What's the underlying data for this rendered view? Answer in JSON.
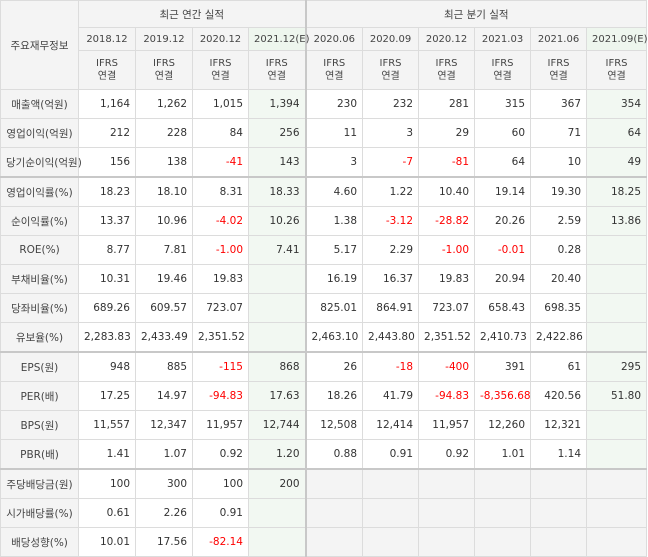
{
  "table": {
    "corner_label": "주요재무정보",
    "annual_group": "최근 연간 실적",
    "quarter_group": "최근 분기 실적",
    "periods": [
      "2018.12",
      "2019.12",
      "2020.12",
      "2021.12(E)",
      "2020.06",
      "2020.09",
      "2020.12",
      "2021.03",
      "2021.06",
      "2021.09(E)"
    ],
    "ifrs_label": "IFRS\n연결",
    "rows": [
      {
        "label": "매출액(억원)",
        "values": [
          "1,164",
          "1,262",
          "1,015",
          "1,394",
          "230",
          "232",
          "281",
          "315",
          "367",
          "354"
        ]
      },
      {
        "label": "영업이익(억원)",
        "values": [
          "212",
          "228",
          "84",
          "256",
          "11",
          "3",
          "29",
          "60",
          "71",
          "64"
        ]
      },
      {
        "label": "당기순이익(억원)",
        "values": [
          "156",
          "138",
          "-41",
          "143",
          "3",
          "-7",
          "-81",
          "64",
          "10",
          "49"
        ]
      },
      {
        "label": "영업이익률(%)",
        "values": [
          "18.23",
          "18.10",
          "8.31",
          "18.33",
          "4.60",
          "1.22",
          "10.40",
          "19.14",
          "19.30",
          "18.25"
        ]
      },
      {
        "label": "순이익률(%)",
        "values": [
          "13.37",
          "10.96",
          "-4.02",
          "10.26",
          "1.38",
          "-3.12",
          "-28.82",
          "20.26",
          "2.59",
          "13.86"
        ]
      },
      {
        "label": "ROE(%)",
        "values": [
          "8.77",
          "7.81",
          "-1.00",
          "7.41",
          "5.17",
          "2.29",
          "-1.00",
          "-0.01",
          "0.28",
          ""
        ]
      },
      {
        "label": "부채비율(%)",
        "values": [
          "10.31",
          "19.46",
          "19.83",
          "",
          "16.19",
          "16.37",
          "19.83",
          "20.94",
          "20.40",
          ""
        ]
      },
      {
        "label": "당좌비율(%)",
        "values": [
          "689.26",
          "609.57",
          "723.07",
          "",
          "825.01",
          "864.91",
          "723.07",
          "658.43",
          "698.35",
          ""
        ]
      },
      {
        "label": "유보율(%)",
        "values": [
          "2,283.83",
          "2,433.49",
          "2,351.52",
          "",
          "2,463.10",
          "2,443.80",
          "2,351.52",
          "2,410.73",
          "2,422.86",
          ""
        ]
      },
      {
        "label": "EPS(원)",
        "values": [
          "948",
          "885",
          "-115",
          "868",
          "26",
          "-18",
          "-400",
          "391",
          "61",
          "295"
        ]
      },
      {
        "label": "PER(배)",
        "values": [
          "17.25",
          "14.97",
          "-94.83",
          "17.63",
          "18.26",
          "41.79",
          "-94.83",
          "-8,356.68",
          "420.56",
          "51.80"
        ]
      },
      {
        "label": "BPS(원)",
        "values": [
          "11,557",
          "12,347",
          "11,957",
          "12,744",
          "12,508",
          "12,414",
          "11,957",
          "12,260",
          "12,321",
          ""
        ]
      },
      {
        "label": "PBR(배)",
        "values": [
          "1.41",
          "1.07",
          "0.92",
          "1.20",
          "0.88",
          "0.91",
          "0.92",
          "1.01",
          "1.14",
          ""
        ]
      },
      {
        "label": "주당배당금(원)",
        "values": [
          "100",
          "300",
          "100",
          "200",
          "",
          "",
          "",
          "",
          "",
          ""
        ]
      },
      {
        "label": "시가배당률(%)",
        "values": [
          "0.61",
          "2.26",
          "0.91",
          "",
          "",
          "",
          "",
          "",
          "",
          ""
        ]
      },
      {
        "label": "배당성향(%)",
        "values": [
          "10.01",
          "17.56",
          "-82.14",
          "",
          "",
          "",
          "",
          "",
          "",
          ""
        ]
      }
    ]
  }
}
